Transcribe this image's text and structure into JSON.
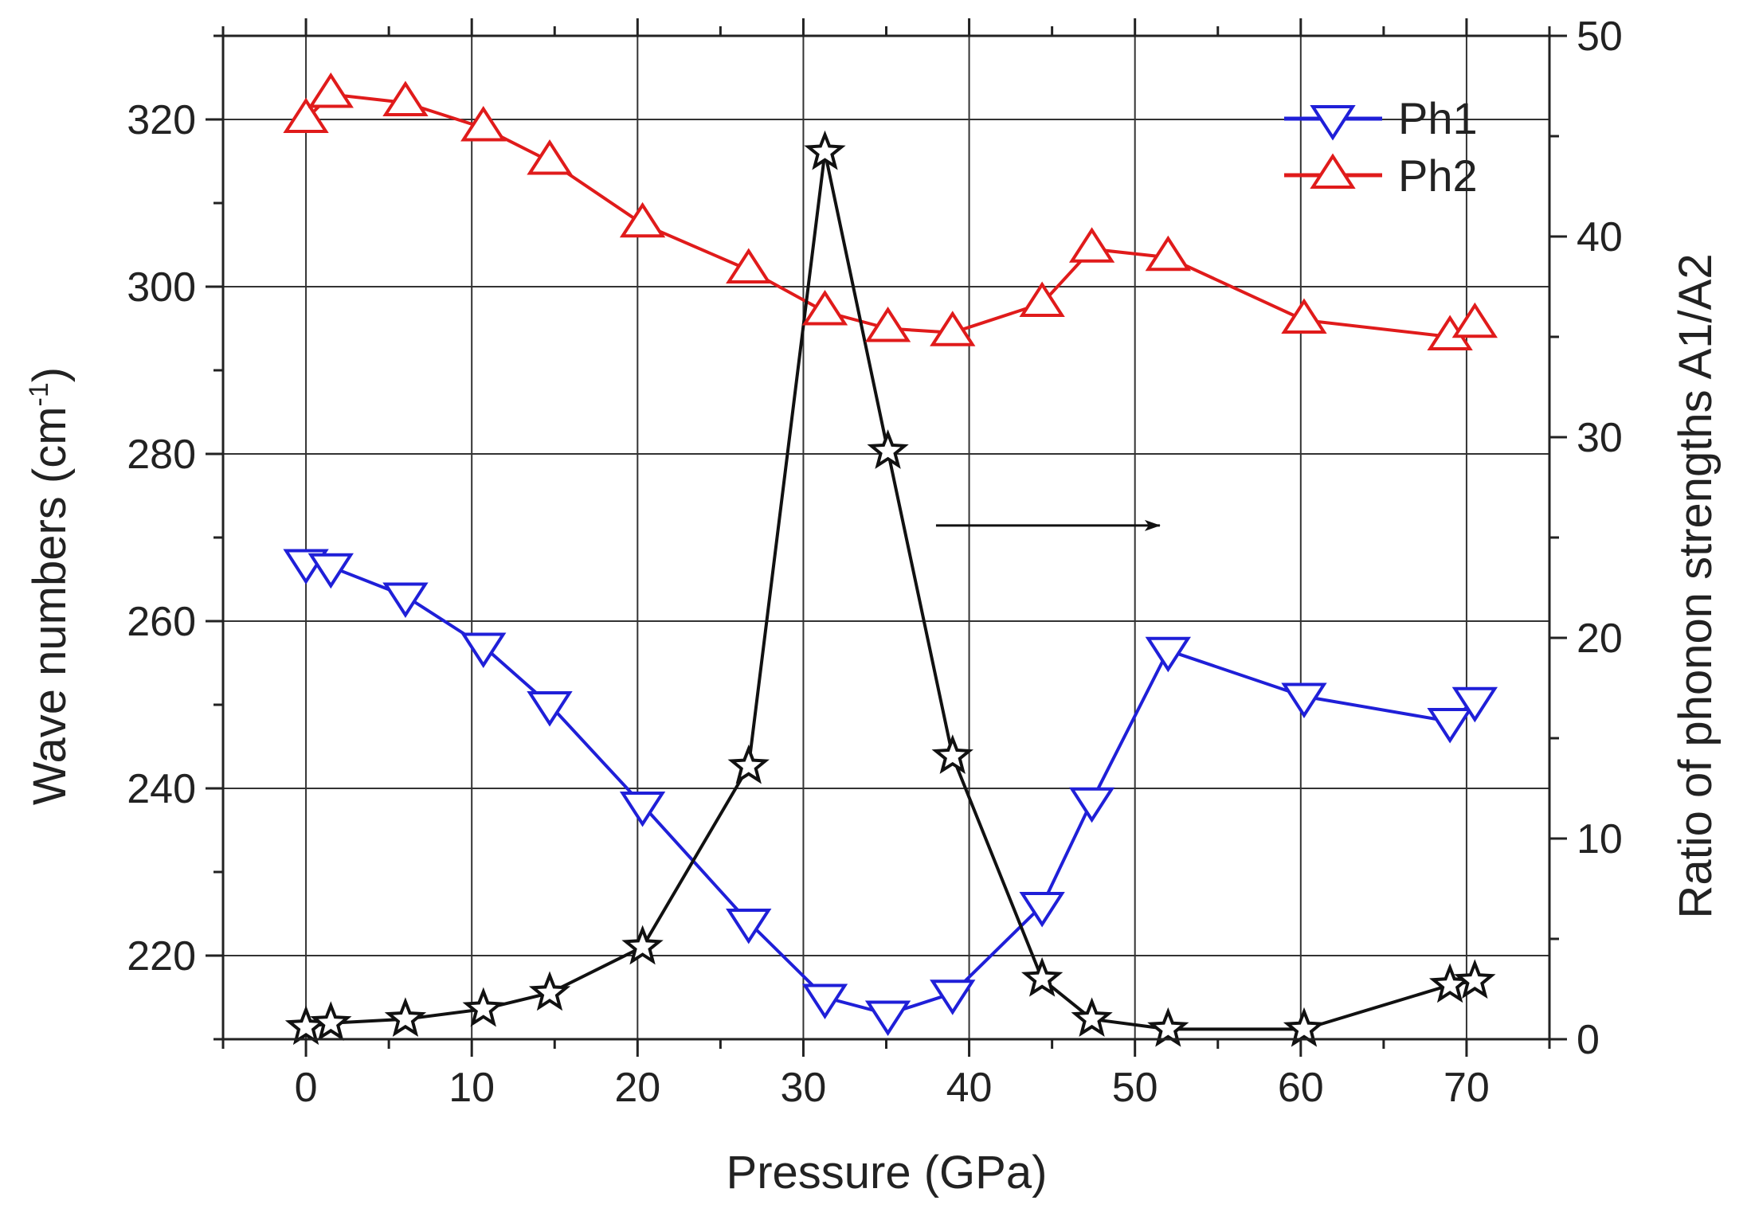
{
  "chart_data": {
    "type": "line",
    "title": "",
    "xlabel": "Pressure (GPa)",
    "ylabel": "Wave numbers (cm",
    "ylabel_sup": "-1",
    "ylabel_close": ")",
    "y2label": "Ratio of phonon strengths A1/A2",
    "xlim": [
      -5,
      75
    ],
    "ylim": [
      210,
      330
    ],
    "y2lim": [
      0,
      50
    ],
    "xticks": [
      0,
      10,
      20,
      30,
      40,
      50,
      60,
      70
    ],
    "yticks": [
      220,
      240,
      260,
      280,
      300,
      320
    ],
    "y2ticks": [
      0,
      10,
      20,
      30,
      40,
      50
    ],
    "grid": true,
    "legend_position": "top-right",
    "colors": {
      "ph1": "#1f1fd8",
      "ph2": "#e01b1b",
      "ratio": "#111111",
      "grid": "#333333"
    },
    "series": [
      {
        "name": "Ph1",
        "axis": "left",
        "marker": "triangle-down",
        "color": "#1f1fd8",
        "x": [
          0,
          1.5,
          6,
          10.7,
          14.7,
          20.3,
          26.7,
          31.3,
          35.1,
          39,
          44.4,
          47.4,
          52,
          60.2,
          69,
          70.5
        ],
        "y": [
          267,
          266.5,
          263,
          257,
          250,
          238,
          224,
          215,
          213,
          215.5,
          226,
          238.5,
          256.5,
          251,
          248,
          250.5
        ]
      },
      {
        "name": "Ph2",
        "axis": "left",
        "marker": "triangle-up",
        "color": "#e01b1b",
        "x": [
          0,
          1.5,
          6,
          10.7,
          14.7,
          20.3,
          26.7,
          31.3,
          35.1,
          39,
          44.4,
          47.4,
          52,
          60.2,
          69,
          70.5
        ],
        "y": [
          320,
          323,
          322,
          319,
          315,
          307.5,
          302,
          297,
          295,
          294.5,
          298,
          304.5,
          303.5,
          296,
          294,
          295.5
        ]
      },
      {
        "name": "Ratio A1/A2",
        "axis": "right",
        "marker": "star",
        "color": "#111111",
        "x": [
          0,
          1.5,
          6,
          10.7,
          14.7,
          20.3,
          26.7,
          31.3,
          35.1,
          39,
          44.4,
          47.4,
          52,
          60.2,
          69,
          70.5
        ],
        "y": [
          0.6,
          0.8,
          1.0,
          1.5,
          2.3,
          4.6,
          13.6,
          44.2,
          29.3,
          14.1,
          3.0,
          1.0,
          0.5,
          0.5,
          2.7,
          2.9
        ]
      }
    ],
    "annotations": [
      {
        "type": "arrow",
        "direction": "right",
        "from": [
          38,
          25.6
        ],
        "to": [
          51.5,
          25.6
        ],
        "axis": "right"
      }
    ]
  }
}
